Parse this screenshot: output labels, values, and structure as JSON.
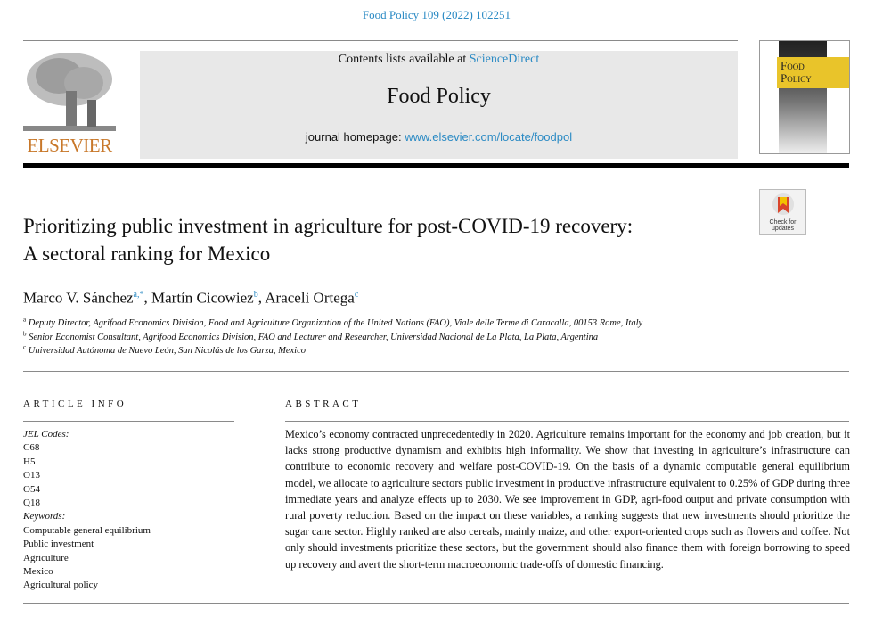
{
  "citation": "Food Policy 109 (2022) 102251",
  "masthead": {
    "contents_prefix": "Contents lists available at ",
    "contents_link": "ScienceDirect",
    "journal": "Food Policy",
    "homepage_prefix": "journal homepage: ",
    "homepage_link": "www.elsevier.com/locate/foodpol",
    "publisher_logo": "ELSEVIER",
    "cover_title_1": "Food",
    "cover_title_2": "Policy"
  },
  "badge": {
    "line1": "Check for",
    "line2": "updates"
  },
  "title_line1": "Prioritizing public investment in agriculture for post-COVID-19 recovery:",
  "title_line2": "A sectoral ranking for Mexico",
  "authors": [
    {
      "name": "Marco V. Sánchez",
      "sup": "a,*"
    },
    {
      "name": "Martín Cicowiez",
      "sup": "b"
    },
    {
      "name": "Araceli Ortega",
      "sup": "c"
    }
  ],
  "affiliations": [
    {
      "sup": "a",
      "text": "Deputy Director, Agrifood Economics Division, Food and Agriculture Organization of the United Nations (FAO), Viale delle Terme di Caracalla, 00153 Rome, Italy"
    },
    {
      "sup": "b",
      "text": "Senior Economist Consultant, Agrifood Economics Division, FAO and Lecturer and Researcher, Universidad Nacional de La Plata, La Plata, Argentina"
    },
    {
      "sup": "c",
      "text": "Universidad Autónoma de Nuevo León, San Nicolás de los Garza, Mexico"
    }
  ],
  "article_info": {
    "heading": "ARTICLE INFO",
    "jel_label": "JEL Codes:",
    "jel": [
      "C68",
      "H5",
      "O13",
      "O54",
      "Q18"
    ],
    "kw_label": "Keywords:",
    "keywords": [
      "Computable general equilibrium",
      "Public investment",
      "Agriculture",
      "Mexico",
      "Agricultural policy"
    ]
  },
  "abstract": {
    "heading": "ABSTRACT",
    "text": "Mexico’s economy contracted unprecedentedly in 2020. Agriculture remains important for the economy and job creation, but it lacks strong productive dynamism and exhibits high informality. We show that investing in agriculture’s infrastructure can contribute to economic recovery and welfare post-COVID-19. On the basis of a dynamic computable general equilibrium model, we allocate to agriculture sectors public investment in productive infrastructure equivalent to 0.25% of GDP during three immediate years and analyze effects up to 2030. We see improvement in GDP, agri-food output and private consumption with rural poverty reduction. Based on the impact on these variables, a ranking suggests that new investments should prioritize the sugar cane sector. Highly ranked are also cereals, mainly maize, and other export-oriented crops such as flowers and coffee. Not only should investments prioritize these sectors, but the government should also finance them with foreign borrowing to speed up recovery and avert the short-term macroeconomic trade-offs of domestic financing."
  },
  "colors": {
    "link": "#2a8ac4",
    "elsevier": "#c8782a",
    "cover_yellow": "#e9c42a"
  }
}
